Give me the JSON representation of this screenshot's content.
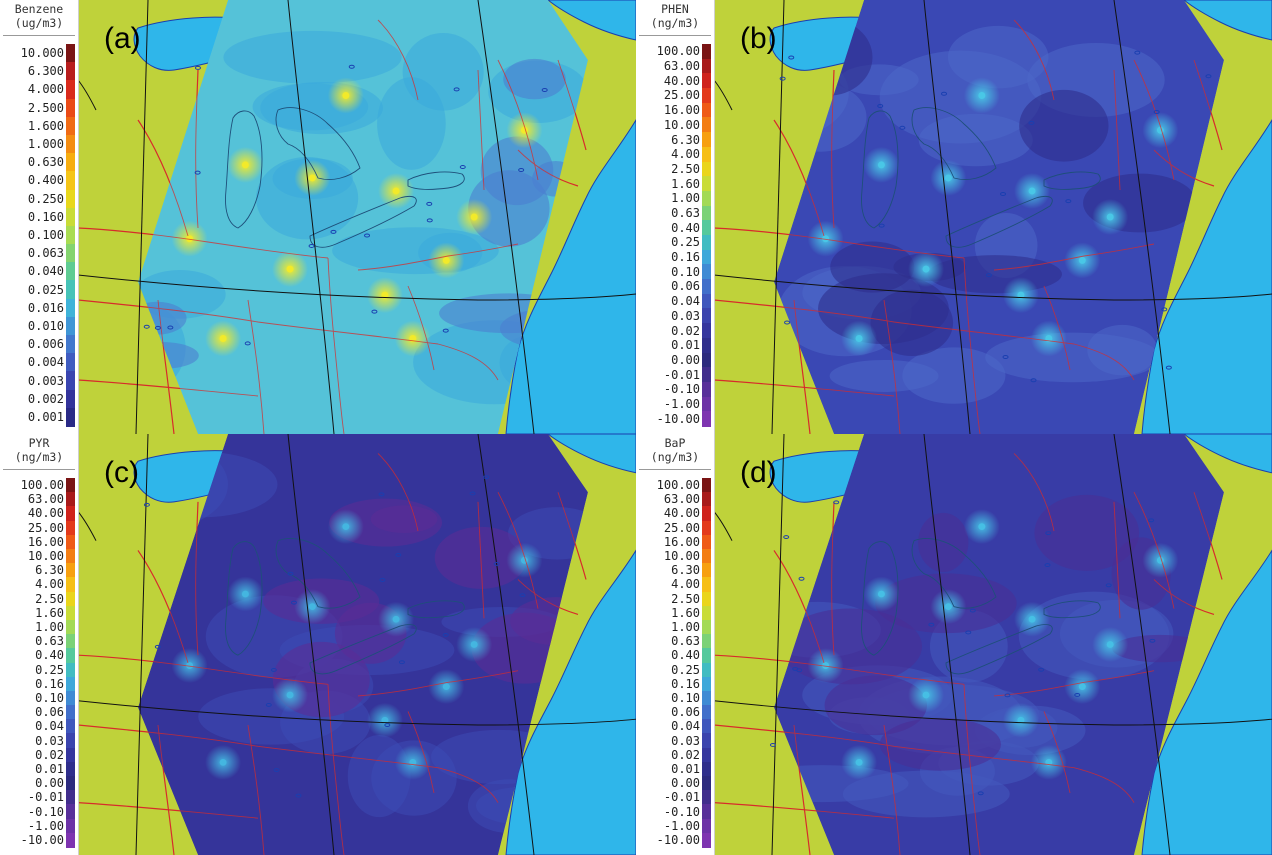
{
  "colors": {
    "land": "#bfd23a",
    "water": "#2fb6ea",
    "state_borders": "#d72b2b",
    "gridlines": "#111111",
    "coast": "#1a3fb0"
  },
  "panels": [
    {
      "id": "a",
      "label": "(a)",
      "legend_line1": "Benzene",
      "legend_line2": "(ug/m3)",
      "ticks": [
        "10.000",
        "6.300",
        "4.000",
        "2.500",
        "1.600",
        "1.000",
        "0.630",
        "0.400",
        "0.250",
        "0.160",
        "0.100",
        "0.063",
        "0.040",
        "0.025",
        "0.016",
        "0.010",
        "0.006",
        "0.004",
        "0.003",
        "0.002",
        "0.001"
      ],
      "colorbar": [
        "#7a1414",
        "#b81d1d",
        "#d92a1c",
        "#ea4a16",
        "#f06a14",
        "#f48c12",
        "#f7ad10",
        "#f5c518",
        "#e8d81c",
        "#c9dc37",
        "#a9dc52",
        "#84d46f",
        "#5fcc93",
        "#46c3b8",
        "#3fb3d9",
        "#3f96d6",
        "#4178cd",
        "#3f5cc0",
        "#3a45b0",
        "#33339b",
        "#2a2a86"
      ],
      "field_base": "#55c2d8",
      "field_mid": "#3aa9dc",
      "field_low": "#4b7fd0",
      "hotspot": "#f2ea2a"
    },
    {
      "id": "b",
      "label": "(b)",
      "legend_line1": "PHEN",
      "legend_line2": "(ng/m3)",
      "ticks": [
        "100.00",
        "63.00",
        "40.00",
        "25.00",
        "16.00",
        "10.00",
        "6.30",
        "4.00",
        "2.50",
        "1.60",
        "1.00",
        "0.63",
        "0.40",
        "0.25",
        "0.16",
        "0.10",
        "0.06",
        "0.04",
        "0.03",
        "0.02",
        "0.01",
        "0.00",
        "-0.01",
        "-0.10",
        "-1.00",
        "-10.00"
      ],
      "colorbar": [
        "#7a1414",
        "#a81a1a",
        "#cf221c",
        "#e3391b",
        "#ef5a16",
        "#f37d13",
        "#f7a010",
        "#f6bf16",
        "#ead51b",
        "#c9dc37",
        "#a3da56",
        "#7bd277",
        "#55c99c",
        "#41bcc2",
        "#3ea8da",
        "#3f8bd4",
        "#416fca",
        "#3f57bd",
        "#3b44ae",
        "#35369e",
        "#2f2e8c",
        "#2c2a7e",
        "#412d8c",
        "#582f9a",
        "#6c32a6",
        "#7e34b0"
      ],
      "field_base": "#3a48b4",
      "field_mid": "#4c67c8",
      "field_low": "#2e2e8e",
      "hotspot": "#49c7e6"
    },
    {
      "id": "c",
      "label": "(c)",
      "legend_line1": "PYR",
      "legend_line2": "(ng/m3)",
      "ticks": [
        "100.00",
        "63.00",
        "40.00",
        "25.00",
        "16.00",
        "10.00",
        "6.30",
        "4.00",
        "2.50",
        "1.60",
        "1.00",
        "0.63",
        "0.40",
        "0.25",
        "0.16",
        "0.10",
        "0.06",
        "0.04",
        "0.03",
        "0.02",
        "0.01",
        "0.00",
        "-0.01",
        "-0.10",
        "-1.00",
        "-10.00"
      ],
      "colorbar": [
        "#7a1414",
        "#a81a1a",
        "#cf221c",
        "#e3391b",
        "#ef5a16",
        "#f37d13",
        "#f7a010",
        "#f6bf16",
        "#ead51b",
        "#c9dc37",
        "#a3da56",
        "#7bd277",
        "#55c99c",
        "#41bcc2",
        "#3ea8da",
        "#3f8bd4",
        "#416fca",
        "#3f57bd",
        "#3b44ae",
        "#35369e",
        "#2f2e8c",
        "#2c2a7e",
        "#412d8c",
        "#582f9a",
        "#6c32a6",
        "#7e34b0"
      ],
      "field_base": "#35349a",
      "field_mid": "#3d4bb4",
      "field_low": "#5a2d96",
      "hotspot": "#44b6e0"
    },
    {
      "id": "d",
      "label": "(d)",
      "legend_line1": "BaP",
      "legend_line2": "(ng/m3)",
      "ticks": [
        "100.00",
        "63.00",
        "40.00",
        "25.00",
        "16.00",
        "10.00",
        "6.30",
        "4.00",
        "2.50",
        "1.60",
        "1.00",
        "0.63",
        "0.40",
        "0.25",
        "0.16",
        "0.10",
        "0.06",
        "0.04",
        "0.03",
        "0.02",
        "0.01",
        "0.00",
        "-0.01",
        "-0.10",
        "-1.00",
        "-10.00"
      ],
      "colorbar": [
        "#7a1414",
        "#a81a1a",
        "#cf221c",
        "#e3391b",
        "#ef5a16",
        "#f37d13",
        "#f7a010",
        "#f6bf16",
        "#ead51b",
        "#c9dc37",
        "#a3da56",
        "#7bd277",
        "#55c99c",
        "#41bcc2",
        "#3ea8da",
        "#3f8bd4",
        "#416fca",
        "#3f57bd",
        "#3b44ae",
        "#35369e",
        "#2f2e8c",
        "#2c2a7e",
        "#412d8c",
        "#582f9a",
        "#6c32a6",
        "#7e34b0"
      ],
      "field_base": "#383ca6",
      "field_mid": "#4359bd",
      "field_low": "#4a2f96",
      "hotspot": "#46bfe4"
    }
  ]
}
